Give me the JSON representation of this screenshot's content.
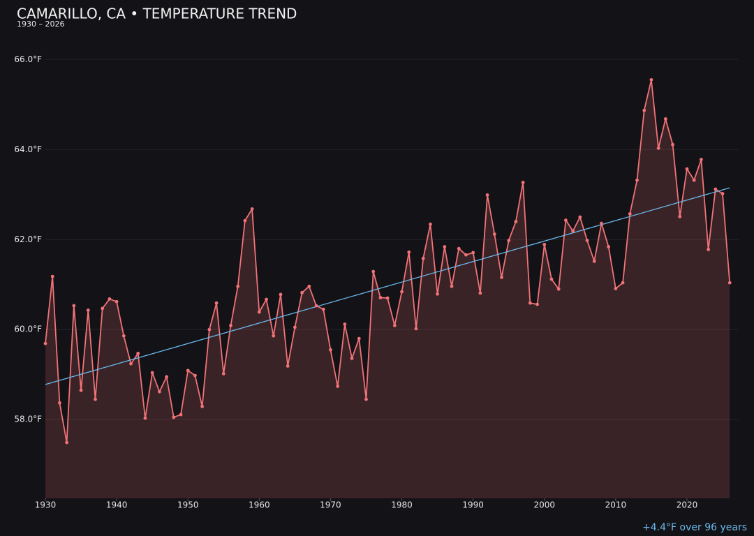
{
  "chart_data": {
    "type": "line",
    "title": "CAMARILLO, CA • TEMPERATURE TREND",
    "subtitle": "1930 – 2026",
    "annotation": "+4.4°F over 96 years",
    "x": [
      1930,
      1931,
      1932,
      1933,
      1934,
      1935,
      1936,
      1937,
      1938,
      1939,
      1940,
      1941,
      1942,
      1943,
      1944,
      1945,
      1946,
      1947,
      1948,
      1949,
      1950,
      1951,
      1952,
      1953,
      1954,
      1955,
      1956,
      1957,
      1958,
      1959,
      1960,
      1961,
      1962,
      1963,
      1964,
      1965,
      1966,
      1967,
      1968,
      1969,
      1970,
      1971,
      1972,
      1973,
      1974,
      1975,
      1976,
      1977,
      1978,
      1979,
      1980,
      1981,
      1982,
      1983,
      1984,
      1985,
      1986,
      1987,
      1988,
      1989,
      1990,
      1991,
      1992,
      1993,
      1994,
      1995,
      1996,
      1997,
      1998,
      1999,
      2000,
      2001,
      2002,
      2003,
      2004,
      2005,
      2006,
      2007,
      2008,
      2009,
      2010,
      2011,
      2012,
      2013,
      2014,
      2015,
      2016,
      2017,
      2018,
      2019,
      2020,
      2021,
      2022,
      2023,
      2024,
      2025,
      2026
    ],
    "series": [
      {
        "color": "#f07377",
        "values": [
          59.69,
          61.18,
          58.37,
          57.49,
          60.53,
          58.65,
          60.43,
          58.45,
          60.47,
          60.68,
          60.62,
          59.86,
          59.24,
          59.47,
          58.03,
          59.04,
          58.62,
          58.95,
          58.05,
          58.11,
          59.09,
          58.98,
          58.29,
          60.0,
          60.59,
          59.02,
          60.09,
          60.96,
          62.42,
          62.68,
          60.39,
          60.67,
          59.86,
          60.78,
          59.19,
          60.05,
          60.82,
          60.96,
          60.53,
          60.45,
          59.55,
          58.74,
          60.12,
          59.36,
          59.8,
          58.45,
          61.29,
          60.71,
          60.7,
          60.09,
          60.84,
          61.72,
          60.02,
          61.58,
          62.34,
          60.79,
          61.84,
          60.96,
          61.8,
          61.66,
          61.71,
          60.81,
          62.99,
          62.12,
          61.16,
          61.98,
          62.4,
          63.27,
          60.59,
          60.56,
          61.89,
          61.12,
          60.9,
          62.43,
          62.19,
          62.5,
          61.98,
          61.52,
          62.36,
          61.84,
          60.91,
          61.04,
          62.57,
          63.32,
          64.87,
          65.55,
          64.03,
          64.68,
          64.11,
          62.51,
          63.57,
          63.32,
          63.78,
          61.78,
          63.12,
          63.02,
          61.04
        ]
      }
    ],
    "trend": {
      "color": "#6ab8ea",
      "x": [
        1930,
        2026
      ],
      "values": [
        58.78,
        63.15
      ]
    },
    "xlim": [
      1930,
      2027.2
    ],
    "ylim": [
      56.25,
      66.3
    ],
    "xticks": [
      1930,
      1940,
      1950,
      1960,
      1970,
      1980,
      1990,
      2000,
      2010,
      2020
    ],
    "yticks": [
      {
        "value": 58,
        "label": "58.0°F"
      },
      {
        "value": 60,
        "label": "60.0°F"
      },
      {
        "value": 62,
        "label": "62.0°F"
      },
      {
        "value": 64,
        "label": "64.0°F"
      },
      {
        "value": 66,
        "label": "66.0°F"
      }
    ],
    "grid": true
  }
}
